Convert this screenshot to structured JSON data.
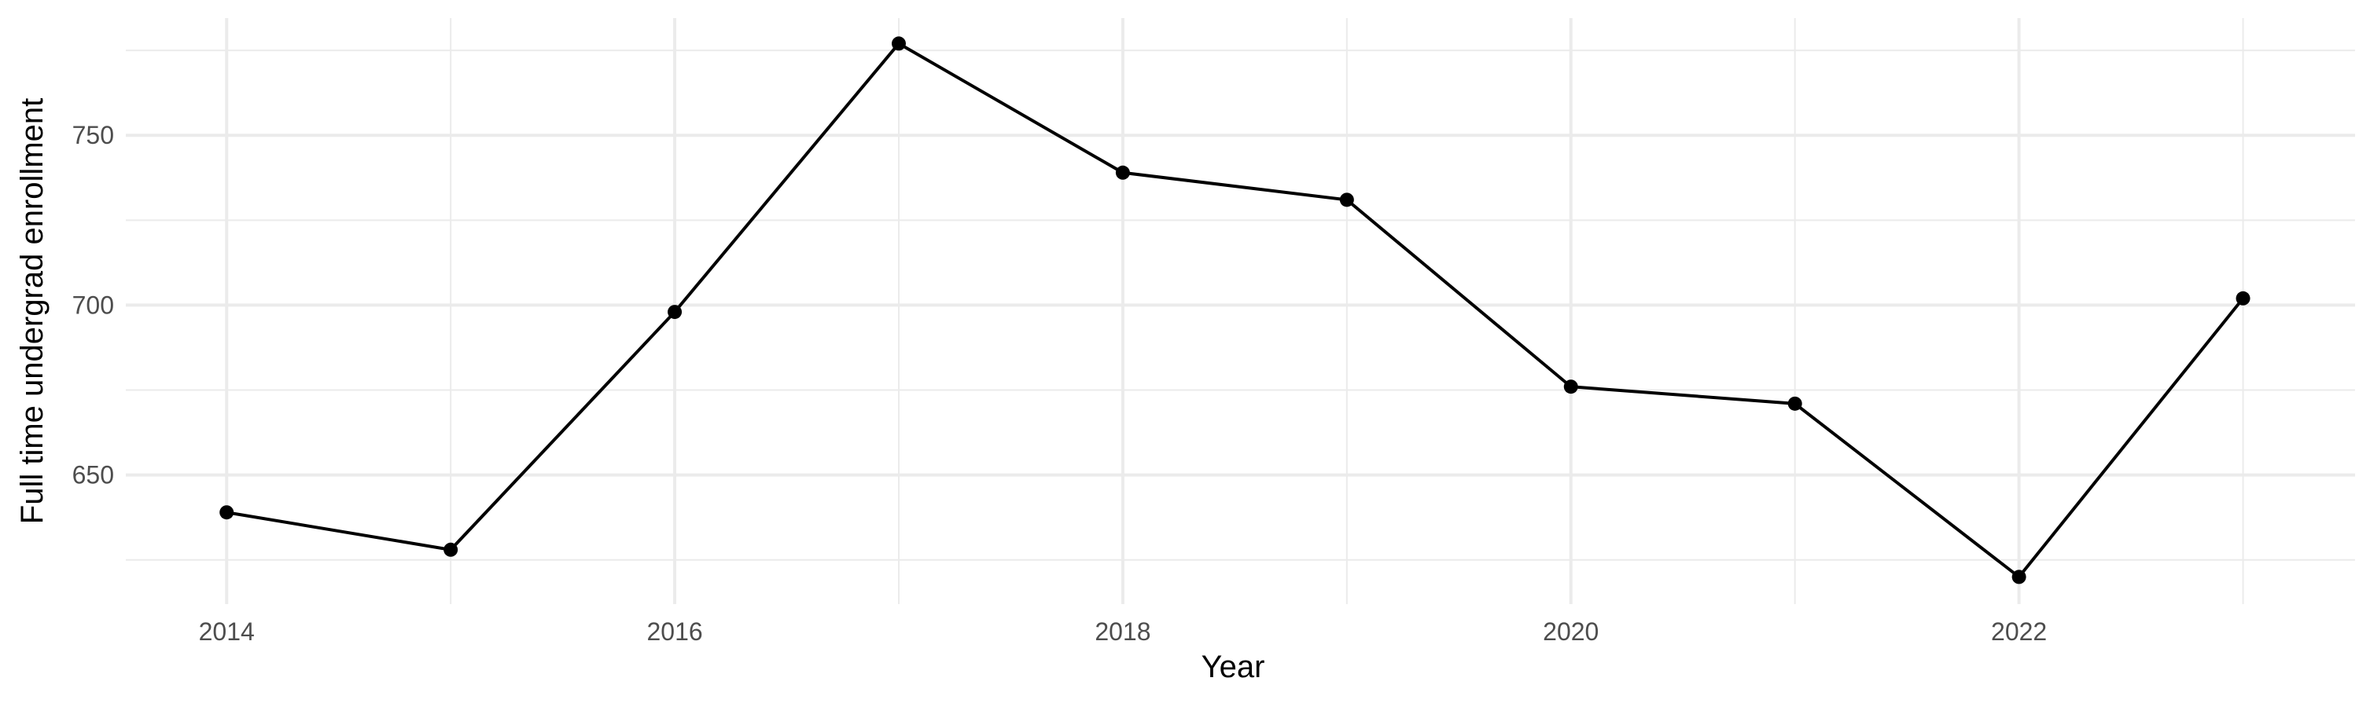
{
  "chart_data": {
    "type": "line",
    "title": "",
    "xlabel": "Year",
    "ylabel": "Full time undergrad enrollment",
    "x": [
      2014,
      2015,
      2016,
      2017,
      2018,
      2019,
      2020,
      2021,
      2022,
      2023
    ],
    "series": [
      {
        "values": [
          639,
          628,
          698,
          777,
          739,
          731,
          676,
          671,
          620,
          702
        ],
        "color": "#000000"
      }
    ],
    "x_ticks": [
      "2014",
      "2016",
      "2018",
      "2020",
      "2022"
    ],
    "y_ticks": [
      "650",
      "700",
      "750"
    ],
    "xlim": [
      2013.55,
      2023.5
    ],
    "ylim": [
      612,
      784.5
    ],
    "grid": true,
    "legend": "none",
    "colors": {
      "grid": "#ebebeb",
      "tick_text": "#4d4d4d",
      "line": "#000000"
    }
  }
}
